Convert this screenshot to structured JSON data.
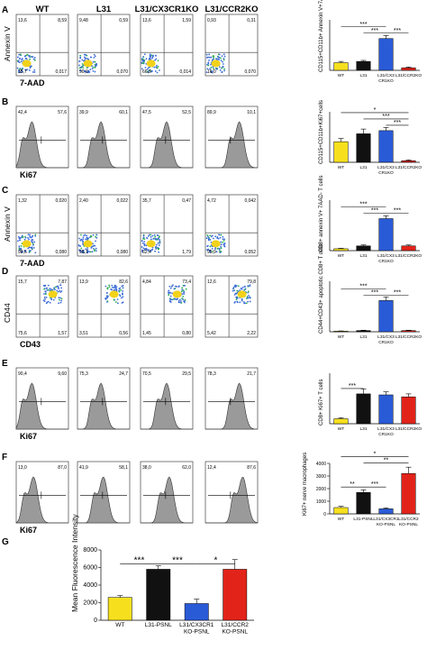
{
  "panel_letters": [
    "A",
    "B",
    "C",
    "D",
    "E",
    "F",
    "G"
  ],
  "flow_columns": [
    "WT",
    "L31",
    "L31/CX3CR1KO",
    "L31/CCR2KO"
  ],
  "rows": [
    {
      "letter": "A",
      "kind": "quad",
      "ylabel": "Annexin V",
      "xlabel": "7-AAD",
      "quads": [
        [
          "13,6",
          "8,59",
          "35,7",
          "0,017"
        ],
        [
          "9,48",
          "0,59",
          "90,0",
          "0,070"
        ],
        [
          "13,6",
          "1,59",
          "66,9",
          "0,014"
        ],
        [
          "0,93",
          "0,31",
          "16,0",
          "0,070"
        ]
      ]
    },
    {
      "letter": "B",
      "kind": "hist",
      "xlabel": "Ki67",
      "vals": [
        [
          "42,4",
          "57,6"
        ],
        [
          "39,9",
          "60,1"
        ],
        [
          "47,5",
          "52,5"
        ],
        [
          "89,9",
          "10,1"
        ]
      ]
    },
    {
      "letter": "C",
      "kind": "quad",
      "ylabel": "Annexin V",
      "xlabel": "7-AAD",
      "quads": [
        [
          "1,32",
          "0,020"
        ],
        [
          "2,40",
          "0,022"
        ],
        [
          "35,7",
          "0,47"
        ],
        [
          "4,72",
          "0,042"
        ]
      ],
      "bottoms": [
        [
          "98,6",
          "0,080"
        ],
        [
          "95,1",
          "0,080"
        ],
        [
          "62,4",
          "1,79"
        ],
        [
          "95,9",
          "0,052"
        ]
      ]
    },
    {
      "letter": "D",
      "kind": "quad",
      "ylabel": "CD44",
      "xlabel": "CD43",
      "quads": [
        [
          "15,7",
          "7,87"
        ],
        [
          "13,9",
          "82,6"
        ],
        [
          "4,84",
          "73,4"
        ],
        [
          "12,6",
          "79,8"
        ]
      ],
      "bottoms": [
        [
          "75,6",
          "1,57"
        ],
        [
          "3,51",
          "0,56"
        ],
        [
          "1,45",
          "0,80"
        ],
        [
          "5,42",
          "2,22"
        ]
      ]
    },
    {
      "letter": "E",
      "kind": "hist",
      "xlabel": "Ki67",
      "vals": [
        [
          "90,4",
          "9,60"
        ],
        [
          "75,3",
          "24,7"
        ],
        [
          "70,5",
          "29,5"
        ],
        [
          "78,3",
          "21,7"
        ]
      ]
    },
    {
      "letter": "F",
      "kind": "hist",
      "xlabel": "Ki67",
      "vals": [
        [
          "13,0",
          "87,0"
        ],
        [
          "41,9",
          "58,1"
        ],
        [
          "38,0",
          "62,0"
        ],
        [
          "12,4",
          "87,6"
        ]
      ]
    }
  ],
  "chart_data": [
    {
      "panel": "A",
      "type": "bar",
      "ylabel": "CD115+CD11b+ Annexin V+7AAD-cells",
      "categories": [
        "WT",
        "L31",
        "L31/CX3 CR1KO",
        "L31/CCR2KO"
      ],
      "values": [
        3,
        3.5,
        12.5,
        1
      ],
      "errors": [
        0.5,
        0.4,
        1.2,
        0.3
      ],
      "colors": [
        "#f6e01e",
        "#111111",
        "#2a5bd7",
        "#e2231a"
      ],
      "sig": [
        {
          "from": 0,
          "to": 2,
          "level": 2,
          "label": "***"
        },
        {
          "from": 1,
          "to": 2,
          "level": 1,
          "label": "***"
        },
        {
          "from": 2,
          "to": 3,
          "level": 1,
          "label": "***"
        }
      ]
    },
    {
      "panel": "B",
      "type": "bar",
      "ylabel": "CD115+CD11b+Ki67+cells",
      "categories": [
        "WT",
        "L31",
        "L31/CX3 CR1KO",
        "L31/CCR2KO"
      ],
      "values": [
        13,
        18,
        20,
        1
      ],
      "errors": [
        2,
        3,
        2,
        0.5
      ],
      "colors": [
        "#f6e01e",
        "#111111",
        "#2a5bd7",
        "#e2231a"
      ],
      "sig": [
        {
          "from": 0,
          "to": 3,
          "level": 3,
          "label": "*"
        },
        {
          "from": 1,
          "to": 3,
          "level": 2,
          "label": "***"
        },
        {
          "from": 2,
          "to": 3,
          "level": 1,
          "label": "***"
        }
      ]
    },
    {
      "panel": "C",
      "type": "bar",
      "ylabel": "CD8+ annexin V+ 7AAD- T cells",
      "categories": [
        "WT",
        "L31",
        "L31/CX3 CR1KO",
        "L31/CCR2KO"
      ],
      "values": [
        2,
        5,
        34,
        5
      ],
      "errors": [
        0.5,
        1,
        3,
        1
      ],
      "colors": [
        "#f6e01e",
        "#111111",
        "#2a5bd7",
        "#e2231a"
      ],
      "sig": [
        {
          "from": 0,
          "to": 2,
          "level": 2,
          "label": "***"
        },
        {
          "from": 1,
          "to": 2,
          "level": 1,
          "label": "***"
        },
        {
          "from": 2,
          "to": 3,
          "level": 1,
          "label": "***"
        }
      ]
    },
    {
      "panel": "D",
      "type": "bar",
      "ylabel": "CD44+CD43+ apoptotic CD8+ T cells",
      "categories": [
        "WT",
        "L31",
        "L31/CX3 CR1KO",
        "L31/CCR2KO"
      ],
      "values": [
        0.5,
        1,
        26,
        1
      ],
      "errors": [
        0.2,
        0.3,
        3,
        0.3
      ],
      "colors": [
        "#f6e01e",
        "#111111",
        "#2a5bd7",
        "#e2231a"
      ],
      "sig": [
        {
          "from": 0,
          "to": 2,
          "level": 2,
          "label": "***"
        },
        {
          "from": 1,
          "to": 2,
          "level": 1,
          "label": "***"
        },
        {
          "from": 2,
          "to": 3,
          "level": 1,
          "label": "***"
        }
      ]
    },
    {
      "panel": "E",
      "type": "bar",
      "ylabel": "CD8+ Ki67+ T cells",
      "categories": [
        "WT",
        "L31",
        "L31/CX3 CR1KO",
        "L31/CCR2KO"
      ],
      "values": [
        5,
        30,
        29,
        27
      ],
      "errors": [
        1,
        5,
        3,
        3
      ],
      "colors": [
        "#f6e01e",
        "#111111",
        "#2a5bd7",
        "#e2231a"
      ],
      "sig": [
        {
          "from": 0,
          "to": 1,
          "level": 1,
          "label": "***"
        }
      ]
    },
    {
      "panel": "F",
      "type": "bar",
      "ylabel": "Ki67+ nerve macrophages",
      "categories": [
        "WT",
        "L31-PSNL",
        "L31/CX3CR1 KO-PSNL",
        "L31/CCR2 KO-PSNL"
      ],
      "values": [
        500,
        1700,
        400,
        3200
      ],
      "errors": [
        100,
        200,
        80,
        500
      ],
      "yticks": [
        "0",
        "1000",
        "2000",
        "3000",
        "4000"
      ],
      "colors": [
        "#f6e01e",
        "#111111",
        "#2a5bd7",
        "#e2231a"
      ],
      "sig": [
        {
          "from": 0,
          "to": 1,
          "level": 1,
          "label": "**"
        },
        {
          "from": 1,
          "to": 2,
          "level": 1,
          "label": "***"
        },
        {
          "from": 1,
          "to": 3,
          "level": 2,
          "label": "**"
        },
        {
          "from": 0,
          "to": 3,
          "level": 3,
          "label": "*"
        }
      ]
    },
    {
      "panel": "G",
      "type": "bar",
      "ylabel": "Mean Fluorescence Intensity",
      "categories": [
        "WT",
        "L31-PSNL",
        "L31/CX3CR1 KO-PSNL",
        "L31/CCR2 KO-PSNL"
      ],
      "values": [
        2600,
        5800,
        1900,
        5800
      ],
      "errors": [
        200,
        400,
        500,
        1100
      ],
      "yticks": [
        "0",
        "2000",
        "4000",
        "6000",
        "8000"
      ],
      "colors": [
        "#f6e01e",
        "#111111",
        "#2a5bd7",
        "#e2231a"
      ],
      "sig": [
        {
          "from": 0,
          "to": 1,
          "level": 1,
          "label": "***"
        },
        {
          "from": 1,
          "to": 2,
          "level": 1,
          "label": "***"
        },
        {
          "from": 2,
          "to": 3,
          "level": 1,
          "label": "*"
        }
      ]
    }
  ]
}
